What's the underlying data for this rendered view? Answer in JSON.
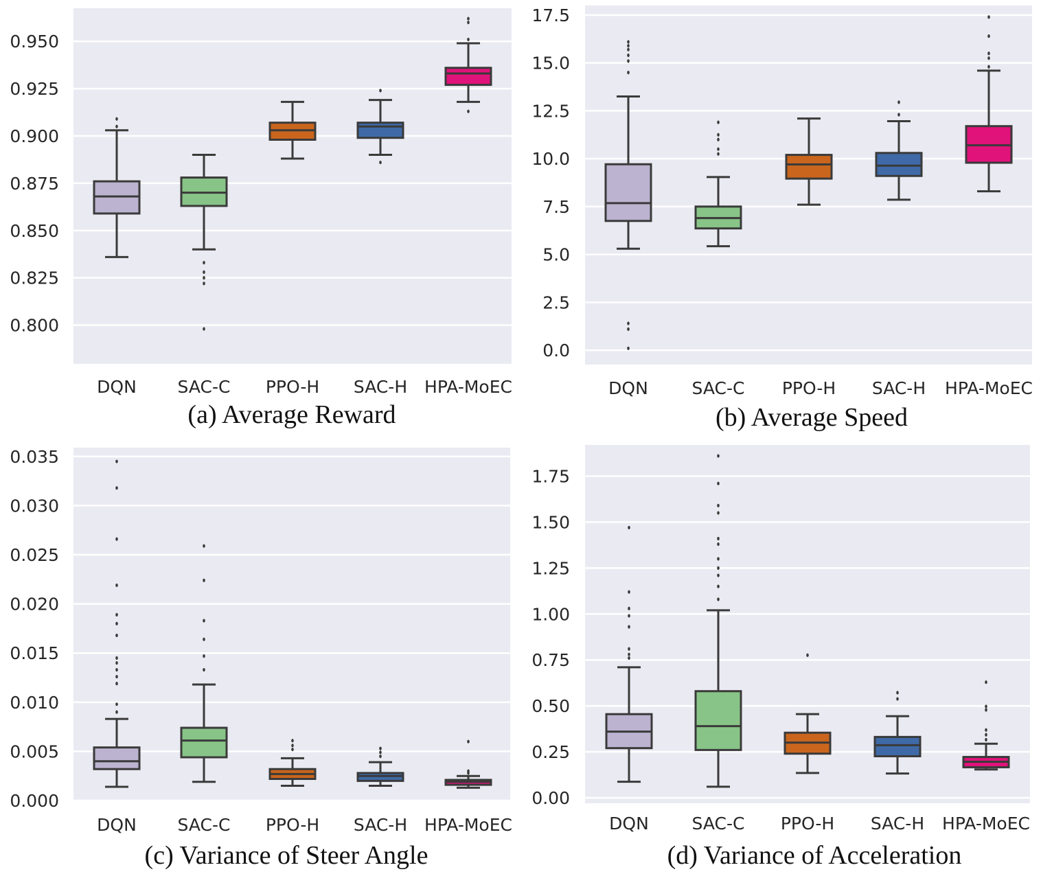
{
  "figure": {
    "palette": {
      "DQN": "#bcb3d0",
      "SAC-C": "#88c487",
      "PPO-H": "#c9651d",
      "SAC-H": "#3f6aa7",
      "HPA-MoEC": "#e0137a"
    },
    "axes_background": "#eaeaf2",
    "grid_color": "#ffffff",
    "line_color": "#3a3a3a"
  },
  "chart_data": [
    {
      "type": "box",
      "caption": "(a) Average Reward",
      "categories": [
        "DQN",
        "SAC-C",
        "PPO-H",
        "SAC-H",
        "HPA-MoEC"
      ],
      "yticks": [
        "0.800",
        "0.825",
        "0.850",
        "0.875",
        "0.900",
        "0.925",
        "0.950"
      ],
      "ytick_values": [
        0.8,
        0.825,
        0.85,
        0.875,
        0.9,
        0.925,
        0.95
      ],
      "ylim": [
        0.7795,
        0.9675
      ],
      "grid": true,
      "boxes": [
        {
          "name": "DQN",
          "whislo": 0.836,
          "q1": 0.859,
          "med": 0.868,
          "q3": 0.876,
          "whishi": 0.903,
          "fliers": [
            0.905,
            0.909
          ]
        },
        {
          "name": "SAC-C",
          "whislo": 0.84,
          "q1": 0.863,
          "med": 0.87,
          "q3": 0.878,
          "whishi": 0.89,
          "fliers": [
            0.833,
            0.828,
            0.825,
            0.822,
            0.798
          ]
        },
        {
          "name": "PPO-H",
          "whislo": 0.888,
          "q1": 0.898,
          "med": 0.903,
          "q3": 0.907,
          "whishi": 0.918,
          "fliers": []
        },
        {
          "name": "SAC-H",
          "whislo": 0.89,
          "q1": 0.899,
          "med": 0.905,
          "q3": 0.907,
          "whishi": 0.919,
          "fliers": [
            0.924,
            0.886
          ]
        },
        {
          "name": "HPA-MoEC",
          "whislo": 0.918,
          "q1": 0.927,
          "med": 0.933,
          "q3": 0.936,
          "whishi": 0.949,
          "fliers": [
            0.962,
            0.96,
            0.951,
            0.913
          ]
        }
      ]
    },
    {
      "type": "box",
      "caption": "(b) Average Speed",
      "categories": [
        "DQN",
        "SAC-C",
        "PPO-H",
        "SAC-H",
        "HPA-MoEC"
      ],
      "yticks": [
        "0.0",
        "2.5",
        "5.0",
        "7.5",
        "10.0",
        "12.5",
        "15.0",
        "17.5"
      ],
      "ytick_values": [
        0.0,
        2.5,
        5.0,
        7.5,
        10.0,
        12.5,
        15.0,
        17.5
      ],
      "ylim": [
        -0.75,
        18.0
      ],
      "grid": true,
      "boxes": [
        {
          "name": "DQN",
          "whislo": 5.3,
          "q1": 6.75,
          "med": 7.68,
          "q3": 9.71,
          "whishi": 13.25,
          "fliers": [
            16.1,
            15.9,
            15.7,
            15.4,
            15.1,
            14.5,
            1.4,
            1.1,
            0.1
          ]
        },
        {
          "name": "SAC-C",
          "whislo": 5.43,
          "q1": 6.36,
          "med": 6.9,
          "q3": 7.5,
          "whishi": 9.04,
          "fliers": [
            11.9,
            11.25,
            11.0,
            10.5,
            10.25
          ]
        },
        {
          "name": "PPO-H",
          "whislo": 7.6,
          "q1": 8.96,
          "med": 9.7,
          "q3": 10.2,
          "whishi": 12.1,
          "fliers": []
        },
        {
          "name": "SAC-H",
          "whislo": 7.86,
          "q1": 9.1,
          "med": 9.64,
          "q3": 10.3,
          "whishi": 11.96,
          "fliers": [
            12.95,
            12.3
          ]
        },
        {
          "name": "HPA-MoEC",
          "whislo": 8.3,
          "q1": 9.79,
          "med": 10.7,
          "q3": 11.7,
          "whishi": 14.6,
          "fliers": [
            17.4,
            16.4,
            15.5,
            15.25,
            14.8
          ]
        }
      ]
    },
    {
      "type": "box",
      "caption": "(c) Variance of Steer Angle",
      "categories": [
        "DQN",
        "SAC-C",
        "PPO-H",
        "SAC-H",
        "HPA-MoEC"
      ],
      "yticks": [
        "0.000",
        "0.005",
        "0.010",
        "0.015",
        "0.020",
        "0.025",
        "0.030",
        "0.035"
      ],
      "ytick_values": [
        0.0,
        0.005,
        0.01,
        0.015,
        0.02,
        0.025,
        0.03,
        0.035
      ],
      "ylim": [
        0.0,
        0.0359
      ],
      "grid": true,
      "boxes": [
        {
          "name": "DQN",
          "whislo": 0.0014,
          "q1": 0.0032,
          "med": 0.004,
          "q3": 0.0054,
          "whishi": 0.0083,
          "fliers": [
            0.0345,
            0.0318,
            0.0266,
            0.0219,
            0.0189,
            0.018,
            0.0168,
            0.0145,
            0.014,
            0.0133,
            0.0126,
            0.0119,
            0.0098,
            0.009
          ]
        },
        {
          "name": "SAC-C",
          "whislo": 0.0019,
          "q1": 0.0044,
          "med": 0.0061,
          "q3": 0.0074,
          "whishi": 0.0118,
          "fliers": [
            0.0259,
            0.0224,
            0.0183,
            0.0164,
            0.0147,
            0.0133
          ]
        },
        {
          "name": "PPO-H",
          "whislo": 0.0015,
          "q1": 0.0022,
          "med": 0.0027,
          "q3": 0.0032,
          "whishi": 0.0043,
          "fliers": [
            0.0061,
            0.0056,
            0.0052
          ]
        },
        {
          "name": "SAC-H",
          "whislo": 0.0015,
          "q1": 0.002,
          "med": 0.0025,
          "q3": 0.0028,
          "whishi": 0.0039,
          "fliers": [
            0.0053,
            0.0049,
            0.0045
          ]
        },
        {
          "name": "HPA-MoEC",
          "whislo": 0.0013,
          "q1": 0.0016,
          "med": 0.0019,
          "q3": 0.0021,
          "whishi": 0.0025,
          "fliers": [
            0.006,
            0.003,
            0.0028
          ]
        }
      ]
    },
    {
      "type": "box",
      "caption": "(d) Variance of Acceleration",
      "categories": [
        "DQN",
        "SAC-C",
        "PPO-H",
        "SAC-H",
        "HPA-MoEC"
      ],
      "yticks": [
        "0.00",
        "0.25",
        "0.50",
        "0.75",
        "1.00",
        "1.25",
        "1.50",
        "1.75"
      ],
      "ytick_values": [
        0.0,
        0.25,
        0.5,
        0.75,
        1.0,
        1.25,
        1.5,
        1.75
      ],
      "ylim": [
        -0.03,
        1.92
      ],
      "grid": true,
      "boxes": [
        {
          "name": "DQN",
          "whislo": 0.087,
          "q1": 0.27,
          "med": 0.36,
          "q3": 0.455,
          "whishi": 0.71,
          "fliers": [
            1.47,
            1.12,
            1.03,
            0.99,
            0.93,
            0.81,
            0.78,
            0.76
          ]
        },
        {
          "name": "SAC-C",
          "whislo": 0.06,
          "q1": 0.26,
          "med": 0.39,
          "q3": 0.58,
          "whishi": 1.02,
          "fliers": [
            1.86,
            1.71,
            1.59,
            1.55,
            1.41,
            1.38,
            1.3,
            1.25,
            1.21,
            1.15,
            1.08
          ]
        },
        {
          "name": "PPO-H",
          "whislo": 0.135,
          "q1": 0.24,
          "med": 0.3,
          "q3": 0.354,
          "whishi": 0.455,
          "fliers": [
            0.776
          ]
        },
        {
          "name": "SAC-H",
          "whislo": 0.132,
          "q1": 0.226,
          "med": 0.286,
          "q3": 0.331,
          "whishi": 0.444,
          "fliers": [
            0.572,
            0.538
          ]
        },
        {
          "name": "HPA-MoEC",
          "whislo": 0.154,
          "q1": 0.166,
          "med": 0.196,
          "q3": 0.222,
          "whishi": 0.294,
          "fliers": [
            0.629,
            0.497,
            0.478,
            0.369,
            0.343,
            0.316
          ]
        }
      ]
    }
  ]
}
